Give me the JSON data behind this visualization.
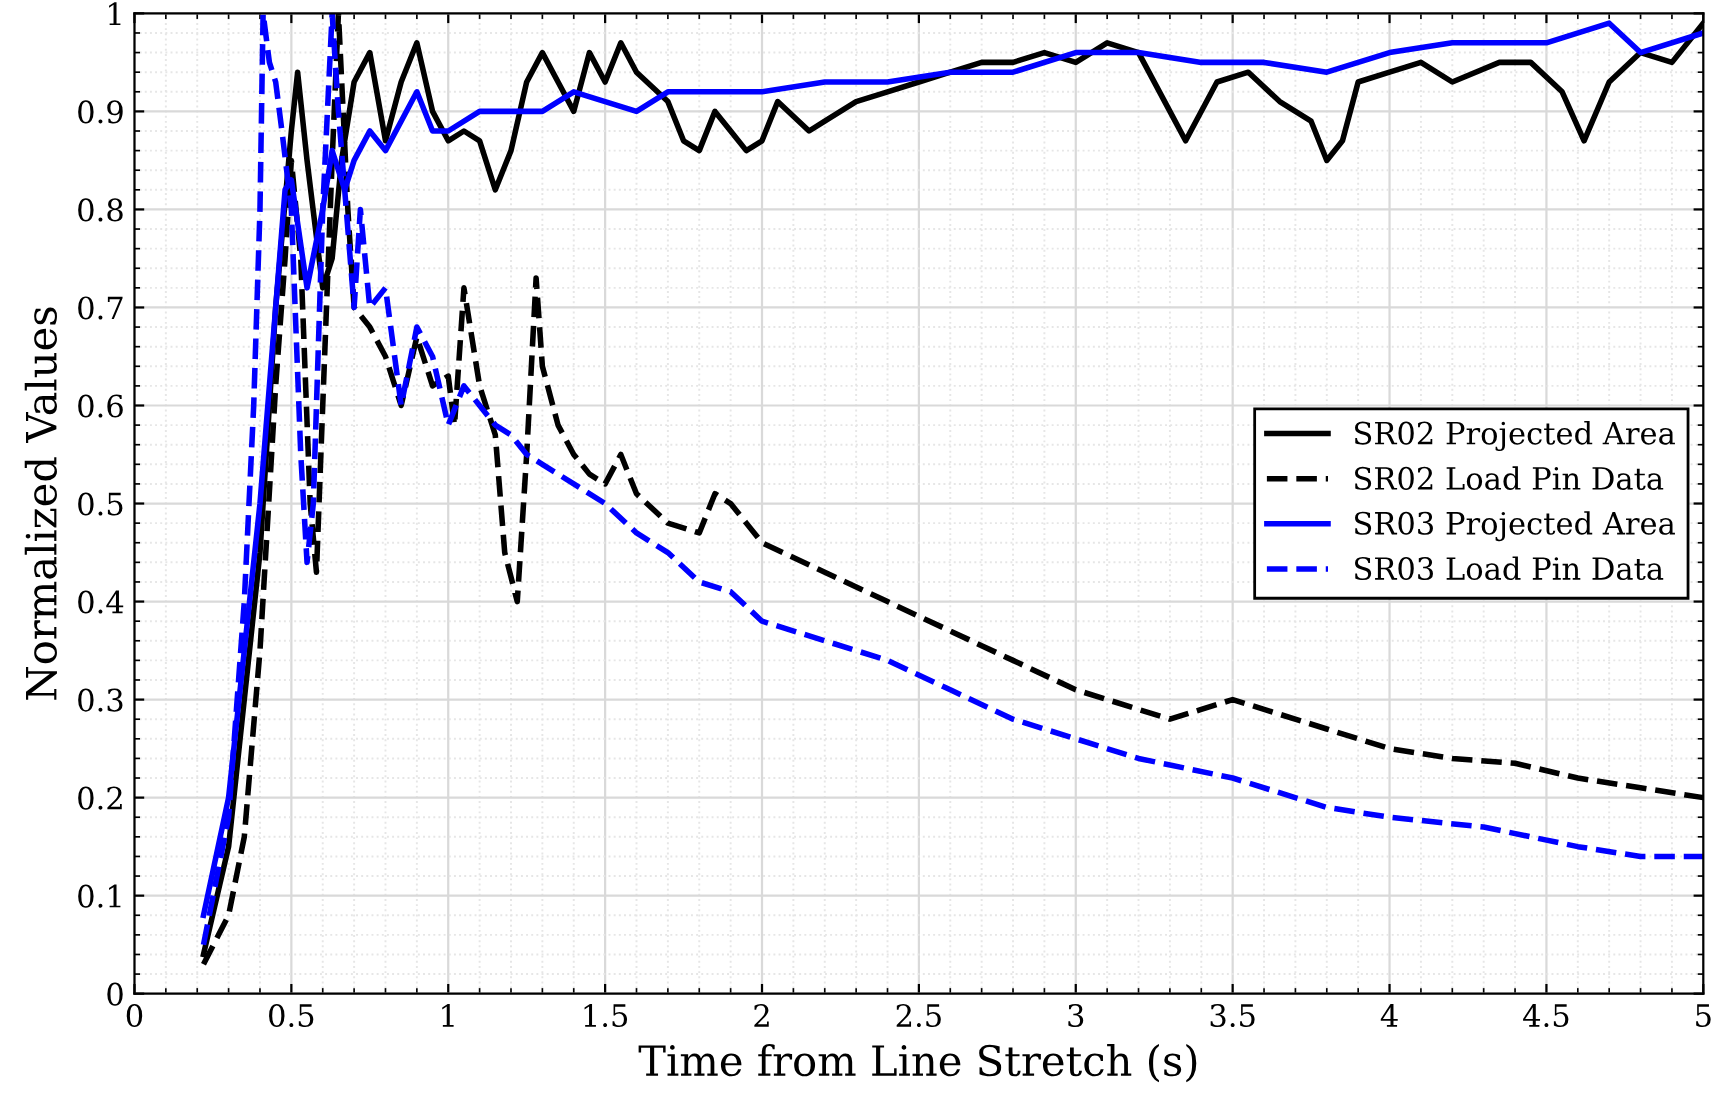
{
  "chart_data": {
    "type": "line",
    "xlabel": "Time from Line Stretch (s)",
    "ylabel": "Normalized Values",
    "xlim": [
      0,
      5
    ],
    "ylim": [
      0,
      1
    ],
    "xticks": [
      0,
      0.5,
      1,
      1.5,
      2,
      2.5,
      3,
      3.5,
      4,
      4.5,
      5
    ],
    "yticks": [
      0,
      0.1,
      0.2,
      0.3,
      0.4,
      0.5,
      0.6,
      0.7,
      0.8,
      0.9,
      1
    ],
    "grid": true,
    "legend": "right",
    "marker": "none",
    "series": [
      {
        "name": "SR02 Projected Area",
        "color": "#000000",
        "line_style": "solid",
        "x": [
          0.22,
          0.3,
          0.4,
          0.45,
          0.5,
          0.52,
          0.55,
          0.6,
          0.63,
          0.66,
          0.7,
          0.75,
          0.8,
          0.85,
          0.9,
          0.95,
          1.0,
          1.05,
          1.1,
          1.15,
          1.2,
          1.25,
          1.3,
          1.35,
          1.4,
          1.45,
          1.5,
          1.55,
          1.6,
          1.7,
          1.75,
          1.8,
          1.85,
          1.9,
          1.95,
          2.0,
          2.05,
          2.15,
          2.2,
          2.3,
          2.4,
          2.5,
          2.6,
          2.7,
          2.8,
          2.9,
          3.0,
          3.1,
          3.2,
          3.3,
          3.35,
          3.45,
          3.55,
          3.65,
          3.75,
          3.8,
          3.85,
          3.9,
          4.0,
          4.1,
          4.2,
          4.35,
          4.45,
          4.55,
          4.62,
          4.7,
          4.8,
          4.9,
          5.0
        ],
        "values": [
          0.04,
          0.15,
          0.45,
          0.7,
          0.88,
          0.94,
          0.85,
          0.72,
          0.75,
          0.85,
          0.93,
          0.96,
          0.87,
          0.93,
          0.97,
          0.9,
          0.87,
          0.88,
          0.87,
          0.82,
          0.86,
          0.93,
          0.96,
          0.93,
          0.9,
          0.96,
          0.93,
          0.97,
          0.94,
          0.91,
          0.87,
          0.86,
          0.9,
          0.88,
          0.86,
          0.87,
          0.91,
          0.88,
          0.89,
          0.91,
          0.92,
          0.93,
          0.94,
          0.95,
          0.95,
          0.96,
          0.95,
          0.97,
          0.96,
          0.9,
          0.87,
          0.93,
          0.94,
          0.91,
          0.89,
          0.85,
          0.87,
          0.93,
          0.94,
          0.95,
          0.93,
          0.95,
          0.95,
          0.92,
          0.87,
          0.93,
          0.96,
          0.95,
          0.99
        ]
      },
      {
        "name": "SR02 Load Pin Data",
        "color": "#000000",
        "line_style": "dashed",
        "x": [
          0.22,
          0.3,
          0.35,
          0.4,
          0.45,
          0.48,
          0.5,
          0.53,
          0.56,
          0.58,
          0.6,
          0.63,
          0.65,
          0.68,
          0.7,
          0.75,
          0.8,
          0.85,
          0.9,
          0.95,
          1.0,
          1.02,
          1.05,
          1.1,
          1.15,
          1.18,
          1.22,
          1.25,
          1.28,
          1.3,
          1.35,
          1.4,
          1.45,
          1.5,
          1.55,
          1.6,
          1.7,
          1.8,
          1.85,
          1.9,
          1.95,
          2.0,
          2.2,
          2.4,
          2.6,
          2.8,
          3.0,
          3.2,
          3.3,
          3.4,
          3.5,
          3.6,
          3.8,
          4.0,
          4.2,
          4.4,
          4.6,
          4.8,
          5.0
        ],
        "values": [
          0.03,
          0.08,
          0.16,
          0.35,
          0.62,
          0.75,
          0.85,
          0.75,
          0.5,
          0.43,
          0.6,
          0.85,
          1.0,
          0.8,
          0.7,
          0.68,
          0.65,
          0.6,
          0.67,
          0.62,
          0.63,
          0.58,
          0.72,
          0.62,
          0.57,
          0.45,
          0.4,
          0.55,
          0.73,
          0.64,
          0.58,
          0.55,
          0.53,
          0.52,
          0.55,
          0.51,
          0.48,
          0.47,
          0.51,
          0.5,
          0.48,
          0.46,
          0.43,
          0.4,
          0.37,
          0.34,
          0.31,
          0.29,
          0.28,
          0.29,
          0.3,
          0.29,
          0.27,
          0.25,
          0.24,
          0.235,
          0.22,
          0.21,
          0.2
        ]
      },
      {
        "name": "SR03 Projected Area",
        "color": "#0000ff",
        "line_style": "solid",
        "x": [
          0.22,
          0.3,
          0.4,
          0.45,
          0.48,
          0.5,
          0.55,
          0.6,
          0.63,
          0.67,
          0.7,
          0.75,
          0.8,
          0.85,
          0.9,
          0.95,
          1.0,
          1.1,
          1.2,
          1.3,
          1.4,
          1.5,
          1.6,
          1.7,
          1.8,
          2.0,
          2.2,
          2.4,
          2.6,
          2.8,
          3.0,
          3.2,
          3.4,
          3.6,
          3.8,
          4.0,
          4.2,
          4.5,
          4.7,
          4.8,
          5.0
        ],
        "values": [
          0.08,
          0.2,
          0.5,
          0.7,
          0.82,
          0.83,
          0.72,
          0.8,
          0.86,
          0.82,
          0.85,
          0.88,
          0.86,
          0.89,
          0.92,
          0.88,
          0.88,
          0.9,
          0.9,
          0.9,
          0.92,
          0.91,
          0.9,
          0.92,
          0.92,
          0.92,
          0.93,
          0.93,
          0.94,
          0.94,
          0.96,
          0.96,
          0.95,
          0.95,
          0.94,
          0.96,
          0.97,
          0.97,
          0.99,
          0.96,
          0.98
        ]
      },
      {
        "name": "SR03 Load Pin Data",
        "color": "#0000ff",
        "line_style": "dashed",
        "x": [
          0.22,
          0.3,
          0.35,
          0.38,
          0.4,
          0.41,
          0.43,
          0.45,
          0.47,
          0.5,
          0.53,
          0.55,
          0.57,
          0.6,
          0.63,
          0.65,
          0.68,
          0.7,
          0.72,
          0.75,
          0.8,
          0.85,
          0.9,
          0.95,
          1.0,
          1.05,
          1.1,
          1.15,
          1.2,
          1.25,
          1.3,
          1.4,
          1.5,
          1.6,
          1.7,
          1.8,
          1.9,
          2.0,
          2.2,
          2.4,
          2.6,
          2.8,
          3.0,
          3.2,
          3.5,
          3.8,
          4.0,
          4.3,
          4.6,
          4.8,
          5.0
        ],
        "values": [
          0.05,
          0.18,
          0.4,
          0.6,
          0.8,
          1.0,
          0.95,
          0.93,
          0.88,
          0.8,
          0.55,
          0.44,
          0.5,
          0.8,
          1.0,
          0.9,
          0.78,
          0.7,
          0.8,
          0.7,
          0.72,
          0.6,
          0.68,
          0.65,
          0.58,
          0.62,
          0.6,
          0.58,
          0.57,
          0.55,
          0.54,
          0.52,
          0.5,
          0.47,
          0.45,
          0.42,
          0.41,
          0.38,
          0.36,
          0.34,
          0.31,
          0.28,
          0.26,
          0.24,
          0.22,
          0.19,
          0.18,
          0.17,
          0.15,
          0.14,
          0.14
        ]
      }
    ]
  }
}
